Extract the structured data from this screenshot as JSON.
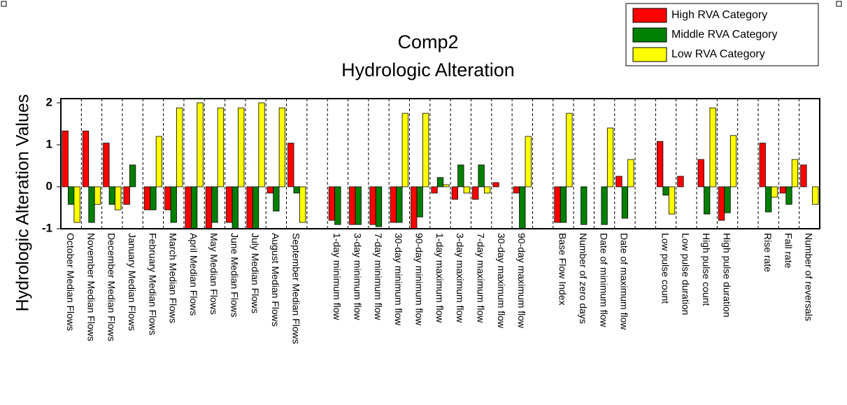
{
  "chart_data": {
    "type": "bar",
    "title": "Comp2",
    "subtitle": "Hydrologic Alteration",
    "y_label": "Hydrologic Alteration Values",
    "categories": [
      "October Median Flows",
      "November Median Flows",
      "December Median Flows",
      "January Median Flows",
      "February Median Flows",
      "March Median Flows",
      "April Median Flows",
      "May Median Flows",
      "June Median Flows",
      "July Median Flows",
      "August Median Flows",
      "September Median Flows",
      null,
      "1-day minimum flow",
      "3-day minimum flow",
      "7-day minimum flow",
      "30-day minimum flow",
      "90-day minimum flow",
      "1-day maximum flow",
      "3-day maximum flow",
      "7-day maximum flow",
      "30-day maximum flow",
      "90-day maximum flow",
      null,
      "Base Flow Index",
      "Number of zero days",
      "Date of minimum flow",
      "Date of maximum flow",
      null,
      "Low pulse count",
      "Low pulse duration",
      "High pulse count",
      "High pulse duration",
      null,
      "Rise rate",
      "Fall rate",
      "Number of reversals"
    ],
    "series": [
      {
        "name": "High RVA Category",
        "color": "#ff0000",
        "values": [
          1.33,
          1.33,
          1.04,
          -0.42,
          -0.55,
          -0.55,
          -1,
          -1,
          -0.85,
          -1,
          -0.15,
          1.04,
          null,
          -0.8,
          -0.9,
          -0.9,
          -0.85,
          -1,
          -0.15,
          -0.3,
          -0.3,
          0.1,
          -0.15,
          null,
          -0.85,
          0,
          0,
          0.25,
          null,
          1.08,
          0.25,
          0.65,
          -0.8,
          null,
          1.04,
          -0.15,
          0.52
        ]
      },
      {
        "name": "Middle RVA Category",
        "color": "#008000",
        "values": [
          -0.42,
          -0.85,
          -0.42,
          0.52,
          -0.55,
          -0.85,
          -1,
          -0.85,
          -1,
          -1,
          -0.58,
          -0.15,
          null,
          -0.9,
          -0.9,
          -0.95,
          -0.85,
          -0.72,
          0.22,
          0.52,
          0.52,
          0,
          -1,
          null,
          -0.85,
          -0.9,
          -0.9,
          -0.75,
          null,
          -0.2,
          0,
          -0.65,
          -0.62,
          null,
          -0.6,
          -0.42,
          0
        ]
      },
      {
        "name": "Low RVA Category",
        "color": "#ffff00",
        "values": [
          -0.85,
          -0.42,
          -0.55,
          0,
          1.2,
          1.88,
          2,
          1.88,
          1.88,
          2,
          1.88,
          -0.85,
          null,
          0,
          0,
          0,
          1.75,
          1.75,
          0.05,
          -0.15,
          -0.15,
          0,
          1.2,
          null,
          1.75,
          0,
          1.4,
          0.65,
          null,
          -0.65,
          0,
          1.88,
          1.22,
          null,
          -0.25,
          0.65,
          -0.42
        ]
      }
    ],
    "ylim": [
      -1,
      2
    ],
    "yticks": [
      -1,
      0,
      1,
      2
    ],
    "legend": "top-right"
  }
}
